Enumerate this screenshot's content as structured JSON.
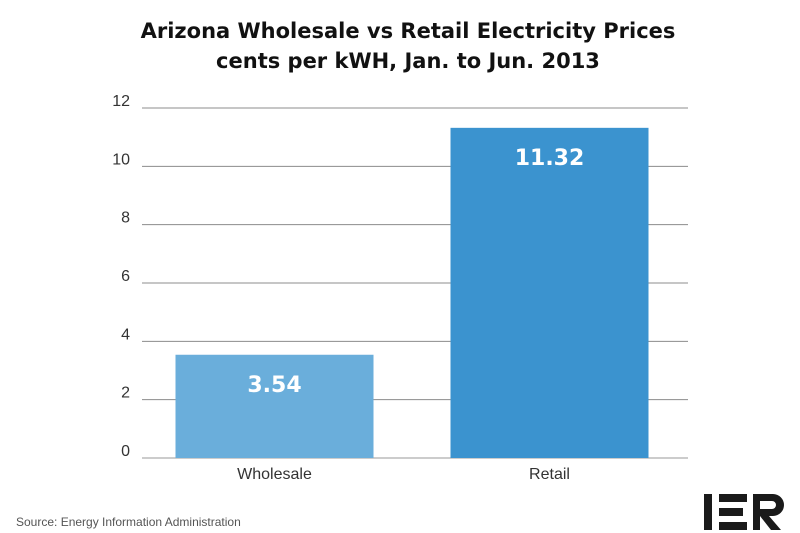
{
  "chart_data": {
    "type": "bar",
    "title": "Arizona Wholesale vs Retail Electricity Prices",
    "subtitle": "cents per kWH, Jan. to Jun. 2013",
    "categories": [
      "Wholesale",
      "Retail"
    ],
    "values": [
      3.54,
      11.32
    ],
    "value_labels": [
      "3.54",
      "11.32"
    ],
    "bar_colors": [
      "#6aaedb",
      "#3b93cf"
    ],
    "xlabel": "",
    "ylabel": "",
    "ylim": [
      0,
      12
    ],
    "yticks": [
      0,
      2,
      4,
      6,
      8,
      10,
      12
    ],
    "grid": true,
    "legend": "none"
  },
  "source": "Source: Energy Information Administration",
  "logo": {
    "text": "IER"
  }
}
